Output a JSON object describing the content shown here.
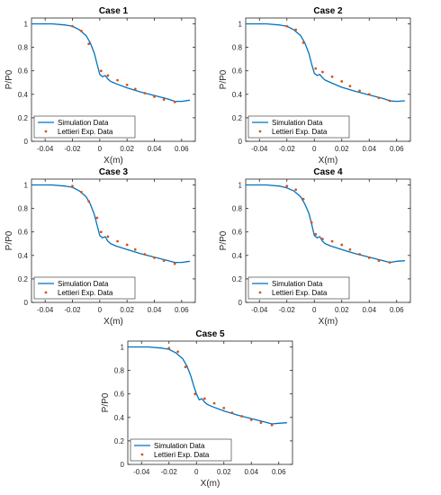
{
  "colors": {
    "simulation": "#0072bd",
    "experiment": "#d95319",
    "axis": "#262626"
  },
  "chart_data": [
    {
      "type": "line",
      "title": "Case 1",
      "xlabel": "X(m)",
      "ylabel": "P/P0",
      "xlim": [
        -0.05,
        0.07
      ],
      "ylim": [
        0,
        1.05
      ],
      "xticks": [
        -0.04,
        -0.02,
        0,
        0.02,
        0.04,
        0.06
      ],
      "xtick_labels": [
        "-0.04",
        "-0.02",
        "0",
        "0.02",
        "0.04",
        "0.06"
      ],
      "yticks": [
        0,
        0.2,
        0.4,
        0.6,
        0.8,
        1
      ],
      "ytick_labels": [
        "0",
        "0.2",
        "0.4",
        "0.6",
        "0.8",
        "1"
      ],
      "grid": false,
      "legend_position": "bottom-left",
      "series": [
        {
          "name": "Simulation Data",
          "style": "line",
          "x": [
            -0.05,
            -0.035,
            -0.025,
            -0.02,
            -0.015,
            -0.01,
            -0.007,
            -0.004,
            -0.002,
            0,
            0.002,
            0.004,
            0.006,
            0.008,
            0.012,
            0.02,
            0.03,
            0.04,
            0.05,
            0.055,
            0.06,
            0.066
          ],
          "y": [
            1.0,
            1.0,
            0.99,
            0.98,
            0.95,
            0.9,
            0.84,
            0.75,
            0.66,
            0.57,
            0.55,
            0.56,
            0.53,
            0.51,
            0.49,
            0.455,
            0.42,
            0.39,
            0.36,
            0.34,
            0.34,
            0.35
          ]
        },
        {
          "name": "Lettieri Exp. Data",
          "style": "points",
          "x": [
            -0.02,
            -0.0135,
            -0.008,
            0.001,
            0.006,
            0.013,
            0.02,
            0.026,
            0.033,
            0.04,
            0.047,
            0.055
          ],
          "y": [
            0.98,
            0.94,
            0.83,
            0.6,
            0.56,
            0.52,
            0.48,
            0.445,
            0.41,
            0.38,
            0.355,
            0.335
          ]
        }
      ]
    },
    {
      "type": "line",
      "title": "Case 2",
      "xlabel": "X(m)",
      "ylabel": "P/P0",
      "xlim": [
        -0.05,
        0.07
      ],
      "ylim": [
        0,
        1.05
      ],
      "xticks": [
        -0.04,
        -0.02,
        0,
        0.02,
        0.04,
        0.06
      ],
      "xtick_labels": [
        "-0.04",
        "-0.02",
        "0",
        "0.02",
        "0.04",
        "0.06"
      ],
      "yticks": [
        0,
        0.2,
        0.4,
        0.6,
        0.8,
        1
      ],
      "ytick_labels": [
        "0",
        "0.2",
        "0.4",
        "0.6",
        "0.8",
        "1"
      ],
      "grid": false,
      "legend_position": "bottom-left",
      "series": [
        {
          "name": "Simulation Data",
          "style": "line",
          "x": [
            -0.05,
            -0.035,
            -0.025,
            -0.02,
            -0.015,
            -0.01,
            -0.007,
            -0.004,
            -0.002,
            0,
            0.002,
            0.004,
            0.006,
            0.008,
            0.012,
            0.02,
            0.03,
            0.04,
            0.05,
            0.055,
            0.06,
            0.066
          ],
          "y": [
            1.0,
            1.0,
            0.99,
            0.98,
            0.95,
            0.9,
            0.84,
            0.75,
            0.66,
            0.58,
            0.56,
            0.57,
            0.54,
            0.52,
            0.5,
            0.46,
            0.425,
            0.395,
            0.365,
            0.345,
            0.34,
            0.345
          ]
        },
        {
          "name": "Lettieri Exp. Data",
          "style": "points",
          "x": [
            -0.02,
            -0.0135,
            -0.008,
            0.001,
            0.006,
            0.013,
            0.02,
            0.026,
            0.033,
            0.04,
            0.047,
            0.055
          ],
          "y": [
            0.98,
            0.95,
            0.84,
            0.62,
            0.59,
            0.55,
            0.51,
            0.47,
            0.43,
            0.4,
            0.37,
            0.345
          ]
        }
      ]
    },
    {
      "type": "line",
      "title": "Case 3",
      "xlabel": "X(m)",
      "ylabel": "P/P0",
      "xlim": [
        -0.05,
        0.07
      ],
      "ylim": [
        0,
        1.05
      ],
      "xticks": [
        -0.04,
        -0.02,
        0,
        0.02,
        0.04,
        0.06
      ],
      "xtick_labels": [
        "-0.04",
        "-0.02",
        "0",
        "0.02",
        "0.04",
        "0.06"
      ],
      "yticks": [
        0,
        0.2,
        0.4,
        0.6,
        0.8,
        1
      ],
      "ytick_labels": [
        "0",
        "0.2",
        "0.4",
        "0.6",
        "0.8",
        "1"
      ],
      "grid": false,
      "legend_position": "bottom-left",
      "series": [
        {
          "name": "Simulation Data",
          "style": "line",
          "x": [
            -0.05,
            -0.035,
            -0.025,
            -0.02,
            -0.015,
            -0.01,
            -0.007,
            -0.004,
            -0.002,
            0,
            0.002,
            0.004,
            0.006,
            0.008,
            0.012,
            0.02,
            0.03,
            0.04,
            0.05,
            0.055,
            0.06,
            0.066
          ],
          "y": [
            1.0,
            1.0,
            0.99,
            0.98,
            0.95,
            0.9,
            0.84,
            0.75,
            0.66,
            0.57,
            0.55,
            0.56,
            0.52,
            0.5,
            0.48,
            0.45,
            0.415,
            0.385,
            0.355,
            0.34,
            0.34,
            0.35
          ]
        },
        {
          "name": "Lettieri Exp. Data",
          "style": "points",
          "x": [
            -0.02,
            -0.0135,
            -0.008,
            -0.002,
            0.001,
            0.006,
            0.013,
            0.02,
            0.026,
            0.033,
            0.04,
            0.047,
            0.055
          ],
          "y": [
            0.99,
            0.94,
            0.86,
            0.72,
            0.6,
            0.56,
            0.52,
            0.49,
            0.45,
            0.41,
            0.38,
            0.355,
            0.33
          ]
        }
      ]
    },
    {
      "type": "line",
      "title": "Case 4",
      "xlabel": "X(m)",
      "ylabel": "P/P0",
      "xlim": [
        -0.05,
        0.07
      ],
      "ylim": [
        0,
        1.05
      ],
      "xticks": [
        -0.04,
        -0.02,
        0,
        0.02,
        0.04,
        0.06
      ],
      "xtick_labels": [
        "-0.04",
        "-0.02",
        "0",
        "0.02",
        "0.04",
        "0.06"
      ],
      "yticks": [
        0,
        0.2,
        0.4,
        0.6,
        0.8,
        1
      ],
      "ytick_labels": [
        "0",
        "0.2",
        "0.4",
        "0.6",
        "0.8",
        "1"
      ],
      "grid": false,
      "legend_position": "bottom-left",
      "series": [
        {
          "name": "Simulation Data",
          "style": "line",
          "x": [
            -0.05,
            -0.035,
            -0.025,
            -0.02,
            -0.015,
            -0.01,
            -0.007,
            -0.004,
            -0.002,
            0,
            0.002,
            0.004,
            0.006,
            0.008,
            0.012,
            0.02,
            0.03,
            0.04,
            0.05,
            0.055,
            0.06,
            0.066
          ],
          "y": [
            1.0,
            1.0,
            0.99,
            0.975,
            0.95,
            0.9,
            0.84,
            0.76,
            0.67,
            0.57,
            0.55,
            0.56,
            0.52,
            0.5,
            0.48,
            0.45,
            0.415,
            0.385,
            0.355,
            0.34,
            0.35,
            0.355
          ]
        },
        {
          "name": "Lettieri Exp. Data",
          "style": "points",
          "x": [
            -0.02,
            -0.0135,
            -0.008,
            -0.002,
            0.001,
            0.006,
            0.013,
            0.02,
            0.026,
            0.033,
            0.04,
            0.047,
            0.055
          ],
          "y": [
            0.99,
            0.96,
            0.88,
            0.68,
            0.58,
            0.54,
            0.52,
            0.49,
            0.45,
            0.41,
            0.38,
            0.355,
            0.34
          ]
        }
      ]
    },
    {
      "type": "line",
      "title": "Case 5",
      "xlabel": "X(m)",
      "ylabel": "P/P0",
      "xlim": [
        -0.05,
        0.07
      ],
      "ylim": [
        0,
        1.05
      ],
      "xticks": [
        -0.04,
        -0.02,
        0,
        0.02,
        0.04,
        0.06
      ],
      "xtick_labels": [
        "-0.04",
        "-0.02",
        "0",
        "0.02",
        "0.04",
        "0.06"
      ],
      "yticks": [
        0,
        0.2,
        0.4,
        0.6,
        0.8,
        1
      ],
      "ytick_labels": [
        "0",
        "0.2",
        "0.4",
        "0.6",
        "0.8",
        "1"
      ],
      "grid": false,
      "legend_position": "bottom-left",
      "series": [
        {
          "name": "Simulation Data",
          "style": "line",
          "x": [
            -0.05,
            -0.035,
            -0.025,
            -0.02,
            -0.015,
            -0.01,
            -0.007,
            -0.004,
            -0.002,
            0,
            0.002,
            0.004,
            0.006,
            0.008,
            0.012,
            0.02,
            0.03,
            0.04,
            0.05,
            0.055,
            0.06,
            0.066
          ],
          "y": [
            1.0,
            1.0,
            0.99,
            0.98,
            0.95,
            0.9,
            0.84,
            0.75,
            0.67,
            0.6,
            0.55,
            0.56,
            0.53,
            0.51,
            0.49,
            0.455,
            0.42,
            0.39,
            0.36,
            0.345,
            0.35,
            0.355
          ]
        },
        {
          "name": "Lettieri Exp. Data",
          "style": "points",
          "x": [
            -0.02,
            -0.0135,
            -0.008,
            -0.001,
            0.006,
            0.013,
            0.02,
            0.026,
            0.033,
            0.04,
            0.047,
            0.055
          ],
          "y": [
            0.99,
            0.96,
            0.83,
            0.6,
            0.56,
            0.52,
            0.48,
            0.44,
            0.41,
            0.38,
            0.355,
            0.335
          ]
        }
      ]
    }
  ]
}
